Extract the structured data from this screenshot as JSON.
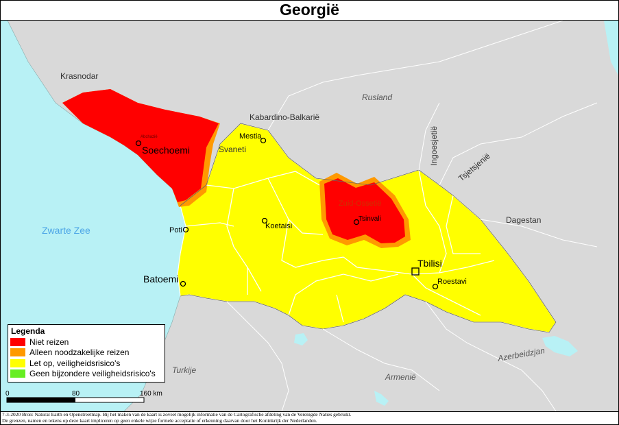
{
  "title": "Georgië",
  "colors": {
    "sea": "#b8f1f5",
    "foreign_land": "#d9d9d9",
    "niet_reizen": "#ff0000",
    "alleen_noodzakelijke": "#ff9900",
    "let_op": "#ffff00",
    "geen_bijzondere": "#66ee22",
    "border_internal": "#ffffff",
    "water_label": "#4da6e6"
  },
  "labels": {
    "krasnodar": "Krasnodar",
    "rusland": "Rusland",
    "kabardino": "Kabardino-Balkarië",
    "ingoesjetie": "Ingoesjetië",
    "tsjetsjenie": "Tsjetsjenië",
    "dagestan": "Dagestan",
    "zwarte_zee": "Zwarte Zee",
    "azerbeidzjan": "Azerbeidzjan",
    "armenie": "Armenië",
    "turkije": "Turkije",
    "abchazie": "Abchazië",
    "zuid_ossetie": "Zuid-Ossetië",
    "svaneti": "Svaneti"
  },
  "cities": {
    "soechoemi": "Soechoemi",
    "mestia": "Mestia",
    "poti": "Poti",
    "koetaisi": "Koetaisi",
    "tsinvali": "Tsinvali",
    "batoemi": "Batoemi",
    "tbilisi": "Tbilisi",
    "roestavi": "Roestavi"
  },
  "legend": {
    "title": "Legenda",
    "items": [
      {
        "label": "Niet reizen",
        "color": "#ff0000"
      },
      {
        "label": "Alleen noodzakelijke reizen",
        "color": "#ff9900"
      },
      {
        "label": "Let op, veiligheidsrisico's",
        "color": "#ffff00"
      },
      {
        "label": "Geen bijzondere veiligheidsrisico's",
        "color": "#66ee22"
      }
    ]
  },
  "scale": {
    "ticks": [
      "0",
      "80",
      "160 km"
    ]
  },
  "footer": {
    "line1": "7-3-2020 Bron: Natural Earth en Openstreetmap. Bij het maken van de kaart is zoveel mogelijk informatie van de Cartografische afdeling van de Verenigde Naties gebruikt.",
    "line2": "De grenzen, namen en tekens op deze kaart impliceren op geen enkele wijze formele acceptatie of erkenning daarvan door het Koninkrijk der Nederlanden."
  }
}
